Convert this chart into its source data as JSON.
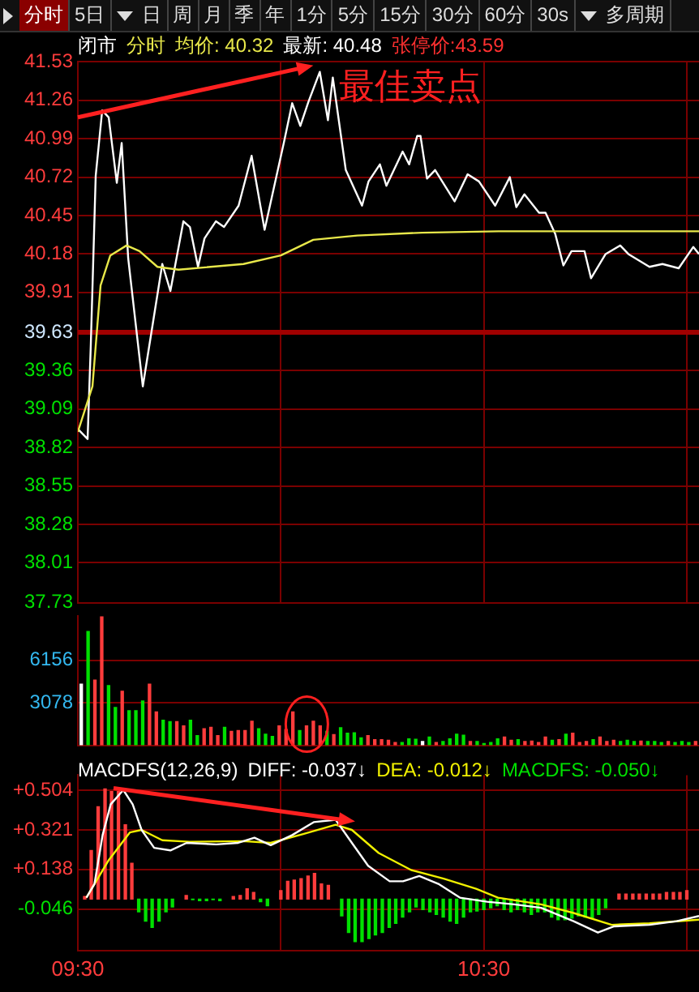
{
  "chart_data": [
    {
      "type": "other",
      "annotations": [
        "分时",
        "5日",
        "日",
        "周",
        "月",
        "季",
        "年",
        "1分",
        "5分",
        "15分",
        "30分",
        "60分",
        "30s",
        "多周期"
      ]
    },
    {
      "type": "line",
      "title": "闭市",
      "subtitle": "分时",
      "xlim": [
        9.5,
        11.03
      ],
      "xticks": [
        {
          "value": 9.5,
          "label": null
        },
        {
          "value": 10,
          "label": null
        },
        {
          "value": 10.5,
          "label": null
        },
        {
          "value": 11,
          "label": null
        }
      ],
      "ylim": [
        37.73,
        41.53
      ],
      "yticks": [
        41.53,
        41.26,
        40.99,
        40.72,
        40.45,
        40.18,
        39.91,
        39.63,
        39.36,
        39.09,
        38.82,
        38.55,
        38.28,
        38.01,
        37.73
      ],
      "tick_labels": "y",
      "grid": true,
      "legend": "top",
      "marker": "none",
      "series": [
        {
          "name": "均价: 40.32",
          "color": "#e8e84a",
          "x": [
            9.5,
            9.536,
            9.556,
            9.58,
            9.62,
            9.652,
            9.696,
            9.748,
            9.908,
            10.0,
            10.08,
            10.188,
            10.348,
            10.536,
            10.708,
            11.03
          ],
          "values": [
            38.93,
            39.25,
            39.96,
            40.17,
            40.24,
            40.2,
            40.09,
            40.07,
            40.11,
            40.17,
            40.28,
            40.31,
            40.33,
            40.34,
            40.34,
            40.34
          ]
        },
        {
          "name": "最新: 40.48",
          "color": "#ffffff",
          "x": [
            9.5,
            9.524,
            9.532,
            9.544,
            9.56,
            9.576,
            9.596,
            9.608,
            9.624,
            9.66,
            9.708,
            9.728,
            9.76,
            9.776,
            9.796,
            9.812,
            9.84,
            9.86,
            9.896,
            9.928,
            9.96,
            10.008,
            10.028,
            10.048,
            10.068,
            10.096,
            10.116,
            10.128,
            10.16,
            10.2,
            10.216,
            10.244,
            10.26,
            10.3,
            10.316,
            10.336,
            10.344,
            10.36,
            10.38,
            10.428,
            10.46,
            10.488,
            10.528,
            10.564,
            10.58,
            10.6,
            10.636,
            10.652,
            10.676,
            10.696,
            10.716,
            10.748,
            10.764,
            10.8,
            10.836,
            10.856,
            10.908,
            10.94,
            10.98,
            11.016,
            11.03
          ],
          "values": [
            38.95,
            38.88,
            39.55,
            40.73,
            41.19,
            41.14,
            40.68,
            40.96,
            40.15,
            39.25,
            40.11,
            39.92,
            40.41,
            40.37,
            40.09,
            40.29,
            40.41,
            40.37,
            40.52,
            40.87,
            40.35,
            40.97,
            41.24,
            41.08,
            41.25,
            41.46,
            41.12,
            41.42,
            40.77,
            40.52,
            40.69,
            40.81,
            40.66,
            40.9,
            40.81,
            41.01,
            41.01,
            40.71,
            40.77,
            40.55,
            40.74,
            40.69,
            40.52,
            40.72,
            40.51,
            40.6,
            40.47,
            40.47,
            40.32,
            40.1,
            40.2,
            40.2,
            40.01,
            40.18,
            40.24,
            40.18,
            40.09,
            40.11,
            40.08,
            40.23,
            40.18
          ]
        }
      ],
      "ref_lines": [
        {
          "axis": "y",
          "value": 39.63,
          "color": "#a00000"
        }
      ],
      "annotations": [
        "张停价:43.59",
        {
          "text": "最佳卖点",
          "x": 10.096,
          "y": 41.46
        }
      ]
    },
    {
      "type": "bar",
      "categories": [
        null,
        null,
        null,
        null,
        null,
        null,
        null,
        null,
        null,
        null,
        null,
        null,
        null,
        null,
        null,
        null,
        null,
        null,
        null,
        null,
        null,
        null,
        null,
        null,
        null,
        null,
        null,
        null,
        null,
        null,
        null,
        null,
        null,
        null,
        null,
        null,
        null,
        null,
        null,
        null,
        null,
        null,
        null,
        null,
        null,
        null,
        null,
        null,
        null,
        null,
        null,
        null,
        null,
        null,
        null,
        null,
        null,
        null,
        null,
        null,
        null,
        null,
        null,
        null,
        null,
        null,
        null,
        null,
        null,
        null,
        null,
        null,
        null,
        null,
        null,
        null,
        null,
        null,
        null,
        null,
        null,
        null,
        null,
        null,
        null,
        null,
        null,
        null,
        null,
        null,
        null
      ],
      "values": [
        4417,
        8231,
        4718,
        9335,
        4316,
        2744,
        3915,
        2510,
        2510,
        3212,
        4417,
        2409,
        1807,
        1707,
        1707,
        1405,
        1807,
        703,
        1205,
        1305,
        703,
        1305,
        1004,
        1071,
        1071,
        1740,
        1205,
        803,
        636,
        1405,
        1138,
        2409,
        1071,
        1405,
        1740,
        1405,
        1004,
        770,
        1271,
        870,
        903,
        535,
        703,
        401,
        401,
        368,
        201,
        201,
        468,
        435,
        268,
        602,
        201,
        268,
        468,
        803,
        736,
        268,
        268,
        134,
        201,
        468,
        602,
        368,
        401,
        268,
        301,
        201,
        602,
        368,
        401,
        803,
        870,
        201,
        268,
        401,
        602,
        268,
        368,
        268,
        368,
        268,
        301,
        268,
        268,
        201,
        268,
        201,
        268,
        201,
        268
      ],
      "colors": [
        "#ffffff",
        "#00e000",
        "#ff3c3c",
        "#ff3c3c",
        "#00e000",
        "#00e000",
        "#ff3c3c",
        "#00e000",
        "#00e000",
        "#00e000",
        "#ff3c3c",
        "#ff3c3c",
        "#00e000",
        "#00e000",
        "#ff3c3c",
        "#ff3c3c",
        "#00e000",
        "#00e000",
        "#ff3c3c",
        "#ff3c3c",
        "#ff3c3c",
        "#00e000",
        "#ff3c3c",
        "#ff3c3c",
        "#ff3c3c",
        "#ff3c3c",
        "#00e000",
        "#00e000",
        "#00e000",
        "#ff3c3c",
        "#ff3c3c",
        "#ff3c3c",
        "#00e000",
        "#ff3c3c",
        "#ff3c3c",
        "#ff3c3c",
        "#00e000",
        "#ff3c3c",
        "#00e000",
        "#00e000",
        "#00e000",
        "#00e000",
        "#ff3c3c",
        "#ff3c3c",
        "#ff3c3c",
        "#ff3c3c",
        "#ff3c3c",
        "#00e000",
        "#00e000",
        "#00e000",
        "#ffffff",
        "#00e000",
        "#ff3c3c",
        "#00e000",
        "#00e000",
        "#00e000",
        "#00e000",
        "#ff3c3c",
        "#00e000",
        "#00e000",
        "#00e000",
        "#00e000",
        "#ff3c3c",
        "#ff3c3c",
        "#00e000",
        "#ff3c3c",
        "#ff3c3c",
        "#ff3c3c",
        "#ff3c3c",
        "#00e000",
        "#ff3c3c",
        "#00e000",
        "#ff3c3c",
        "#ff3c3c",
        "#ff3c3c",
        "#00e000",
        "#ff3c3c",
        "#ff3c3c",
        "#ff3c3c",
        "#00e000",
        "#00e000",
        "#00e000",
        "#ff3c3c",
        "#00e000",
        "#00e000",
        "#00e000",
        "#ff3c3c",
        "#00e000",
        "#00e000",
        "#00e000",
        "#ff3c3c"
      ],
      "ylim": [
        0,
        9335
      ],
      "yticks": [
        3078,
        6156
      ],
      "tick_labels": "y",
      "grid": "y"
    },
    {
      "type": "line",
      "title": "MACDFS(12,26,9)",
      "xlim": [
        9.5,
        11.03
      ],
      "xticks": [
        {
          "value": 9.5,
          "label": "09:30"
        },
        {
          "value": 10,
          "label": null
        },
        {
          "value": 10.5,
          "label": "10:30"
        },
        {
          "value": 11,
          "label": null
        }
      ],
      "ylim": [
        -0.238,
        0.575
      ],
      "yticks": [
        {
          "value": 0.504,
          "label": "+0.504"
        },
        {
          "value": 0.321,
          "label": "+0.321"
        },
        {
          "value": 0.138,
          "label": "+0.138"
        },
        -0.046
      ],
      "grid": true,
      "legend": "top",
      "marker": "none",
      "series": [
        {
          "name": "DIFF: -0.037↓",
          "color": "#ffffff",
          "x": [
            9.521,
            9.541,
            9.561,
            9.581,
            9.612,
            9.635,
            9.657,
            9.688,
            9.728,
            9.768,
            9.841,
            9.895,
            9.935,
            9.975,
            10.028,
            10.081,
            10.135,
            10.175,
            10.215,
            10.268,
            10.301,
            10.341,
            10.388,
            10.441,
            10.508,
            10.575,
            10.641,
            10.721,
            10.781,
            10.821,
            10.908,
            10.975,
            11.03
          ],
          "values": [
            0.007,
            0.071,
            0.297,
            0.44,
            0.506,
            0.44,
            0.321,
            0.238,
            0.226,
            0.261,
            0.254,
            0.261,
            0.285,
            0.25,
            0.297,
            0.357,
            0.368,
            0.261,
            0.155,
            0.083,
            0.083,
            0.107,
            0.071,
            0.007,
            -0.012,
            -0.024,
            -0.04,
            -0.102,
            -0.155,
            -0.126,
            -0.119,
            -0.102,
            -0.078
          ]
        },
        {
          "name": "DEA: -0.012↓",
          "color": "#f0f000",
          "x": [
            9.521,
            9.575,
            9.628,
            9.657,
            9.708,
            9.775,
            9.908,
            9.975,
            10.055,
            10.135,
            10.175,
            10.241,
            10.321,
            10.401,
            10.481,
            10.535,
            10.641,
            10.721,
            10.815,
            10.908,
            11.03
          ],
          "values": [
            0.007,
            0.178,
            0.309,
            0.321,
            0.273,
            0.266,
            0.269,
            0.261,
            0.302,
            0.345,
            0.321,
            0.214,
            0.135,
            0.095,
            0.048,
            0.007,
            -0.024,
            -0.064,
            -0.119,
            -0.112,
            -0.095
          ]
        },
        {
          "name": "MACDFS: -0.050↓",
          "type": "bar",
          "color": "#00e000",
          "x": [
            9.517,
            9.533,
            9.55,
            9.567,
            9.583,
            9.6,
            9.617,
            9.633,
            9.65,
            9.667,
            9.683,
            9.7,
            9.717,
            9.733,
            9.767,
            9.783,
            9.8,
            9.817,
            9.833,
            9.85,
            9.883,
            9.9,
            9.917,
            9.933,
            9.95,
            9.967,
            10.0,
            10.017,
            10.033,
            10.05,
            10.067,
            10.083,
            10.1,
            10.117,
            10.15,
            10.167,
            10.183,
            10.2,
            10.217,
            10.233,
            10.25,
            10.267,
            10.283,
            10.3,
            10.317,
            10.333,
            10.35,
            10.367,
            10.383,
            10.4,
            10.417,
            10.433,
            10.45,
            10.467,
            10.483,
            10.5,
            10.517,
            10.533,
            10.55,
            10.567,
            10.583,
            10.6,
            10.617,
            10.633,
            10.65,
            10.667,
            10.683,
            10.7,
            10.717,
            10.733,
            10.75,
            10.767,
            10.783,
            10.8,
            10.833,
            10.85,
            10.867,
            10.883,
            10.9,
            10.917,
            10.933,
            10.95,
            10.967,
            10.983,
            11.0
          ],
          "values": [
            0.012,
            0.226,
            0.428,
            0.511,
            0.499,
            0.499,
            0.345,
            0.166,
            -0.059,
            -0.102,
            -0.131,
            -0.102,
            -0.059,
            -0.036,
            0.017,
            -0.002,
            -0.007,
            -0.007,
            -0.002,
            -0.007,
            0.012,
            0.017,
            0.048,
            0.031,
            -0.012,
            -0.031,
            0.04,
            0.083,
            0.088,
            0.095,
            0.107,
            0.119,
            0.071,
            0.064,
            -0.078,
            -0.155,
            -0.197,
            -0.197,
            -0.183,
            -0.166,
            -0.155,
            -0.131,
            -0.112,
            -0.083,
            -0.059,
            -0.036,
            -0.048,
            -0.059,
            -0.071,
            -0.083,
            -0.102,
            -0.112,
            -0.083,
            -0.059,
            -0.055,
            -0.048,
            -0.04,
            -0.031,
            -0.048,
            -0.059,
            -0.048,
            -0.059,
            -0.071,
            -0.059,
            -0.059,
            -0.083,
            -0.095,
            -0.095,
            -0.088,
            -0.078,
            -0.083,
            -0.088,
            -0.071,
            -0.04,
            0.024,
            0.024,
            0.024,
            0.024,
            0.024,
            0.024,
            0.024,
            0.031,
            0.031,
            0.031,
            0.04
          ],
          "colors": [
            "#ff3c3c",
            "#ff3c3c",
            "#ff3c3c",
            "#ff3c3c",
            "#ff3c3c",
            "#ff3c3c",
            "#ff3c3c",
            "#ff3c3c",
            "#00e000",
            "#00e000",
            "#00e000",
            "#00e000",
            "#00e000",
            "#00e000",
            "#ff3c3c",
            "#00e000",
            "#00e000",
            "#00e000",
            "#00e000",
            "#00e000",
            "#ff3c3c",
            "#ff3c3c",
            "#ff3c3c",
            "#ff3c3c",
            "#00e000",
            "#00e000",
            "#ff3c3c",
            "#ff3c3c",
            "#ff3c3c",
            "#ff3c3c",
            "#ff3c3c",
            "#ff3c3c",
            "#ff3c3c",
            "#ff3c3c",
            "#00e000",
            "#00e000",
            "#00e000",
            "#00e000",
            "#00e000",
            "#00e000",
            "#00e000",
            "#00e000",
            "#00e000",
            "#00e000",
            "#00e000",
            "#00e000",
            "#00e000",
            "#00e000",
            "#00e000",
            "#00e000",
            "#00e000",
            "#00e000",
            "#00e000",
            "#00e000",
            "#00e000",
            "#00e000",
            "#00e000",
            "#00e000",
            "#00e000",
            "#00e000",
            "#00e000",
            "#00e000",
            "#00e000",
            "#00e000",
            "#00e000",
            "#00e000",
            "#00e000",
            "#00e000",
            "#00e000",
            "#00e000",
            "#00e000",
            "#00e000",
            "#00e000",
            "#00e000",
            "#ff3c3c",
            "#ff3c3c",
            "#ff3c3c",
            "#ff3c3c",
            "#ff3c3c",
            "#ff3c3c",
            "#ff3c3c",
            "#ff3c3c",
            "#ff3c3c",
            "#ff3c3c",
            "#ff3c3c"
          ]
        }
      ]
    }
  ]
}
